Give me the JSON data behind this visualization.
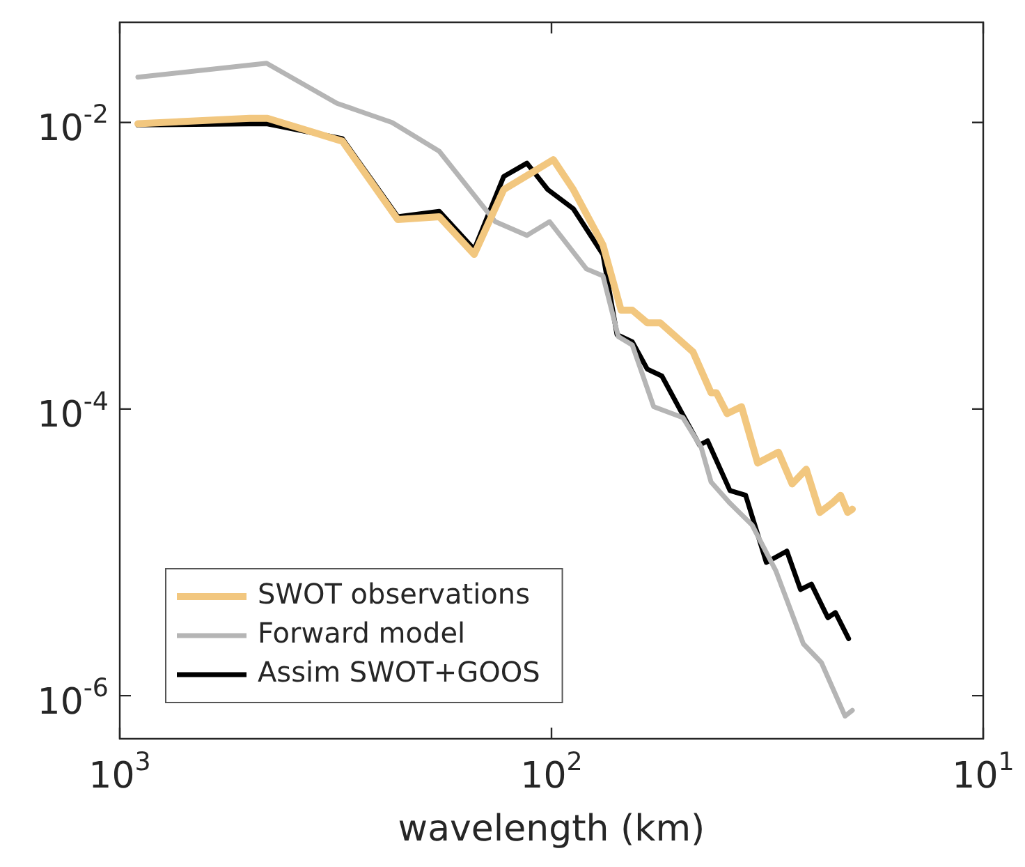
{
  "chart_data": {
    "type": "line",
    "xlabel": "wavelength (km)",
    "log": "xy",
    "xlim": [
      1000,
      10
    ],
    "ylim": [
      5e-07,
      0.05
    ],
    "xticks": [
      {
        "value": 1000,
        "label": "10$^{3}$"
      },
      {
        "value": 100,
        "label": "10$^{2}$"
      },
      {
        "value": 10,
        "label": "10$^{1}$"
      }
    ],
    "yticks": [
      {
        "value": 0.01,
        "label": "10$^{-2}$"
      },
      {
        "value": 0.0001,
        "label": "10$^{-4}$"
      },
      {
        "value": 1e-06,
        "label": "10$^{-6}$"
      }
    ],
    "grid": false,
    "legend": "bottom left",
    "marker": "none",
    "line_style": "solid",
    "series": [
      {
        "name": "SWOT observations",
        "color": "#f2c77f",
        "x": [
          908,
          500,
          455,
          305,
          227,
          182,
          151,
          129,
          99,
          89,
          76,
          69,
          65,
          60,
          56,
          47,
          42.7,
          41.5,
          39.2,
          36.3,
          33.3,
          29.8,
          27.7,
          25.7,
          23.9,
          22.4,
          21.4,
          20.6,
          20.1
        ],
        "values": [
          0.0098,
          0.0107,
          0.0107,
          0.0074,
          0.0021,
          0.0022,
          0.0012,
          0.0034,
          0.0055,
          0.0034,
          0.0014,
          0.00049,
          0.00049,
          0.0004,
          0.0004,
          0.00025,
          0.00013,
          0.00013,
          9.3e-05,
          0.000104,
          4.2e-05,
          5e-05,
          3e-05,
          3.8e-05,
          1.9e-05,
          2.2e-05,
          2.5e-05,
          1.9e-05,
          2e-05
        ]
      },
      {
        "name": "Forward model",
        "color": "#b5b5b5",
        "x": [
          908,
          457,
          314,
          234,
          182,
          135,
          114,
          101,
          83,
          76,
          70,
          65,
          58,
          49.6,
          45,
          42.7,
          38.6,
          34.3,
          30.2,
          26.1,
          23.7,
          20.9,
          20.1
        ],
        "values": [
          0.0207,
          0.0259,
          0.0136,
          0.01,
          0.0063,
          0.00203,
          0.00163,
          0.00203,
          0.00095,
          0.00085,
          0.00032,
          0.00028,
          0.000104,
          8.7e-05,
          5.4e-05,
          3.1e-05,
          2.2e-05,
          1.55e-05,
          7.4e-06,
          2.3e-06,
          1.7e-06,
          7.2e-07,
          7.9e-07
        ]
      },
      {
        "name": "Assim SWOT+GOOS",
        "color": "#000000",
        "x": [
          908,
          457,
          305,
          227,
          182,
          151,
          129,
          114,
          102,
          89,
          76,
          70.5,
          65,
          60,
          55.5,
          49.6,
          45.4,
          43.5,
          38.6,
          35.5,
          31.8,
          28.5,
          26.5,
          25,
          22.9,
          22,
          20.5
        ],
        "values": [
          0.0096,
          0.0098,
          0.0077,
          0.0022,
          0.0024,
          0.0013,
          0.0042,
          0.0052,
          0.0034,
          0.0025,
          0.0012,
          0.00033,
          0.000295,
          0.00019,
          0.00017,
          9.1e-05,
          5.6e-05,
          6e-05,
          2.7e-05,
          2.5e-05,
          8.5e-06,
          1.02e-05,
          5.5e-06,
          6e-06,
          3.5e-06,
          3.8e-06,
          2.5e-06
        ]
      }
    ]
  }
}
